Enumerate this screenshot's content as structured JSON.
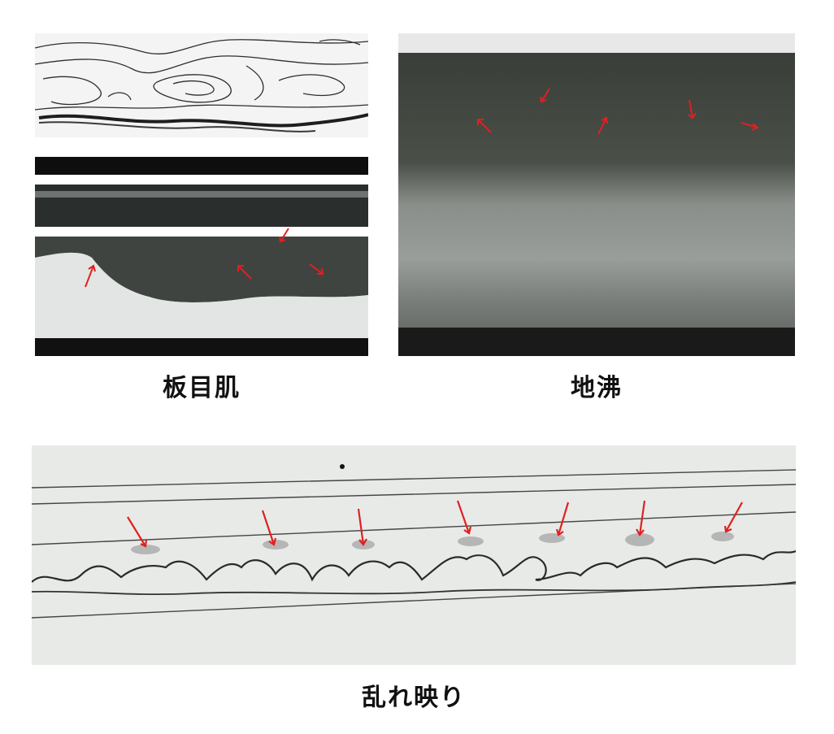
{
  "captions": {
    "itame_hada": "板目肌",
    "ji_nie": "地沸",
    "midare_utsuri": "乱れ映り"
  },
  "colors": {
    "arrow": "#e02020",
    "steel_dark": "#3c4038",
    "steel_light": "#d8dcd8",
    "paper": "#eceeec",
    "ink": "#2a2a2a"
  },
  "icons": [
    "red-arrow-icon"
  ]
}
